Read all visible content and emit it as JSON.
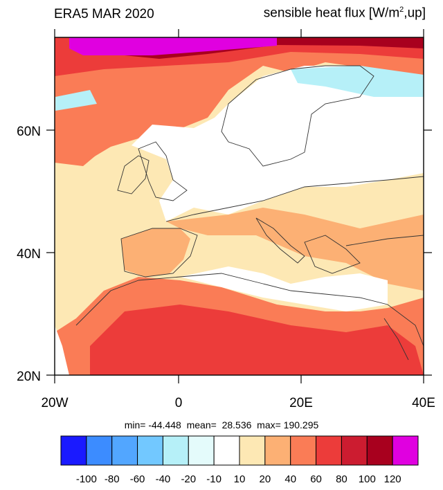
{
  "title_left": "ERA5 MAR 2020",
  "title_right": {
    "text": "sensible heat flux [W/m",
    "sup": "2",
    "tail": ",up]"
  },
  "axes": {
    "lat_labels": [
      "60N",
      "40N",
      "20N"
    ],
    "lon_labels": [
      "20W",
      "0",
      "20E",
      "40E"
    ]
  },
  "stats": {
    "text": "min= -44.448  mean=  28.536  max= 190.295"
  },
  "colorbar": {
    "labels": [
      "-100",
      "-80",
      "-60",
      "-40",
      "-20",
      "-10",
      "10",
      "20",
      "40",
      "60",
      "80",
      "100",
      "120"
    ],
    "colors": [
      "#1a1aff",
      "#3c8cff",
      "#52a6ff",
      "#72c8ff",
      "#b6f0f8",
      "#e4fbfb",
      "#ffffff",
      "#fde8b4",
      "#fcb074",
      "#fa7c56",
      "#ec3c3a",
      "#cc1c30",
      "#a8001e",
      "#e000e0"
    ]
  },
  "map_colors": {
    "land_white": "#ffffff",
    "ocean_light": "#fde8b4",
    "warm": "#fcb074",
    "hot": "#fa7c56",
    "hotter": "#ec3c3a",
    "very_hot": "#cc1c30",
    "extreme": "#a8001e",
    "max": "#e000e0",
    "cool": "#b6f0f8"
  }
}
